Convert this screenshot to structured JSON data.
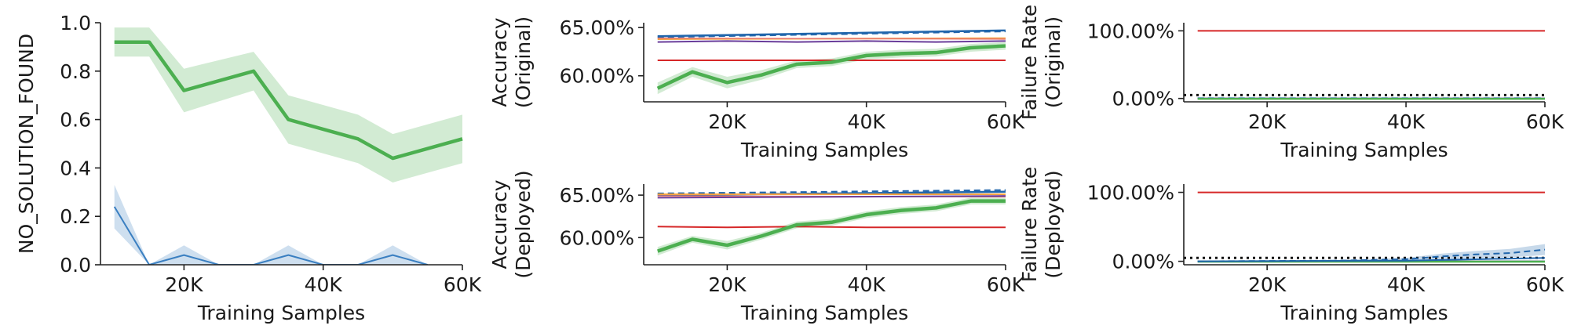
{
  "chart_data": [
    {
      "id": "nsf",
      "type": "line",
      "title": "",
      "xlabel": "Training Samples",
      "ylabel": "NO_SOLUTION_FOUND",
      "xlim": [
        8000,
        60000
      ],
      "ylim": [
        0,
        1.0
      ],
      "xticks": [
        20000,
        40000,
        60000
      ],
      "xtick_labels": [
        "20K",
        "40K",
        "60K"
      ],
      "yticks": [
        0,
        0.2,
        0.4,
        0.6,
        0.8,
        1.0
      ],
      "ytick_labels": [
        "0.0",
        "0.2",
        "0.4",
        "0.6",
        "0.8",
        "1.0"
      ],
      "grid": false,
      "series": [
        {
          "color": "#4caf50",
          "width": 4.5,
          "x": [
            10000,
            15000,
            20000,
            30000,
            35000,
            45000,
            50000,
            60000
          ],
          "y": [
            0.92,
            0.92,
            0.72,
            0.8,
            0.6,
            0.52,
            0.44,
            0.52
          ],
          "lower": [
            0.86,
            0.86,
            0.63,
            0.72,
            0.5,
            0.42,
            0.34,
            0.42
          ],
          "upper": [
            0.98,
            0.98,
            0.81,
            0.88,
            0.7,
            0.62,
            0.54,
            0.62
          ]
        },
        {
          "color": "#3a7fc1",
          "width": 2,
          "x": [
            10000,
            15000,
            20000,
            25000,
            30000,
            35000,
            40000,
            45000,
            50000,
            55000
          ],
          "y": [
            0.24,
            0,
            0.04,
            0,
            0,
            0.04,
            0,
            0,
            0.04,
            0
          ],
          "lower": [
            0.15,
            0,
            0,
            0,
            0,
            0,
            0,
            0,
            0,
            0
          ],
          "upper": [
            0.33,
            0,
            0.08,
            0,
            0,
            0.08,
            0,
            0,
            0.08,
            0
          ]
        }
      ]
    },
    {
      "id": "acc_orig",
      "type": "line",
      "title": "",
      "xlabel": "Training Samples",
      "ylabel": [
        "Accuracy",
        "(Original)"
      ],
      "xlim": [
        8000,
        60000
      ],
      "ylim": [
        57.3,
        65.5
      ],
      "xticks": [
        20000,
        40000,
        60000
      ],
      "xtick_labels": [
        "20K",
        "40K",
        "60K"
      ],
      "yticks": [
        60,
        65
      ],
      "ytick_labels": [
        "60.00%",
        "65.00%"
      ],
      "grid": false,
      "series": [
        {
          "color": "#2166ac",
          "width": 2.5,
          "x": [
            10000,
            60000
          ],
          "y": [
            64.1,
            64.7
          ]
        },
        {
          "color": "#2166ac",
          "width": 2,
          "dash": "8,5",
          "x": [
            10000,
            60000
          ],
          "y": [
            64.0,
            64.6
          ]
        },
        {
          "color": "#f5a442",
          "width": 2,
          "x": [
            10000,
            60000
          ],
          "y": [
            63.8,
            63.9
          ]
        },
        {
          "color": "#e8776f",
          "width": 1.5,
          "x": [
            10000,
            60000
          ],
          "y": [
            63.9,
            63.8
          ]
        },
        {
          "color": "#6a3d9a",
          "width": 2,
          "x": [
            10000,
            20000,
            30000,
            40000,
            50000,
            60000
          ],
          "y": [
            63.5,
            63.6,
            63.5,
            63.6,
            63.5,
            63.6
          ]
        },
        {
          "color": "#d62728",
          "width": 2,
          "x": [
            10000,
            60000
          ],
          "y": [
            61.6,
            61.6
          ]
        },
        {
          "color": "#4caf50",
          "width": 4.5,
          "x": [
            10000,
            15000,
            20000,
            25000,
            30000,
            35000,
            40000,
            45000,
            50000,
            55000,
            60000
          ],
          "y": [
            58.7,
            60.4,
            59.3,
            60.1,
            61.2,
            61.4,
            62.1,
            62.3,
            62.4,
            62.9,
            63.1
          ],
          "lower": [
            58.1,
            59.9,
            58.7,
            59.6,
            60.8,
            61.0,
            61.7,
            61.9,
            62.0,
            62.5,
            62.7
          ],
          "upper": [
            59.3,
            60.9,
            59.9,
            60.6,
            61.6,
            61.8,
            62.5,
            62.7,
            62.8,
            63.3,
            63.5
          ]
        }
      ]
    },
    {
      "id": "fail_orig",
      "type": "line",
      "title": "",
      "xlabel": "Training Samples",
      "ylabel": [
        "Failure Rate",
        "(Original)"
      ],
      "xlim": [
        8000,
        60000
      ],
      "ylim": [
        -5,
        112
      ],
      "xticks": [
        20000,
        40000,
        60000
      ],
      "xtick_labels": [
        "20K",
        "40K",
        "60K"
      ],
      "yticks": [
        0,
        100
      ],
      "ytick_labels": [
        "0.00%",
        "100.00%"
      ],
      "grid": false,
      "series": [
        {
          "color": "#d62728",
          "width": 2,
          "x": [
            10000,
            60000
          ],
          "y": [
            100,
            100
          ]
        },
        {
          "color": "#111111",
          "width": 3,
          "dash": "3,5",
          "x": [
            8000,
            60000
          ],
          "y": [
            5,
            5
          ]
        },
        {
          "color": "#6a3d9a",
          "width": 2,
          "x": [
            10000,
            60000
          ],
          "y": [
            0,
            0
          ]
        },
        {
          "color": "#2166ac",
          "width": 2,
          "dash": "8,5",
          "x": [
            10000,
            60000
          ],
          "y": [
            0.4,
            0.4
          ]
        },
        {
          "color": "#4caf50",
          "width": 2.5,
          "x": [
            10000,
            60000
          ],
          "y": [
            -0.5,
            -0.5
          ]
        }
      ]
    },
    {
      "id": "acc_dep",
      "type": "line",
      "title": "",
      "xlabel": "Training Samples",
      "ylabel": [
        "Accuracy",
        "(Deployed)"
      ],
      "xlim": [
        8000,
        60000
      ],
      "ylim": [
        56.8,
        66.3
      ],
      "xticks": [
        20000,
        40000,
        60000
      ],
      "xtick_labels": [
        "20K",
        "40K",
        "60K"
      ],
      "yticks": [
        60,
        65
      ],
      "ytick_labels": [
        "60.00%",
        "65.00%"
      ],
      "grid": false,
      "series": [
        {
          "color": "#2166ac",
          "width": 2,
          "dash": "8,5",
          "x": [
            10000,
            60000
          ],
          "y": [
            65.2,
            65.6
          ]
        },
        {
          "color": "#2166ac",
          "width": 2.5,
          "x": [
            10000,
            60000
          ],
          "y": [
            65.0,
            65.4
          ]
        },
        {
          "color": "#f5a442",
          "width": 2,
          "x": [
            10000,
            60000
          ],
          "y": [
            65.1,
            65.1
          ]
        },
        {
          "color": "#e8776f",
          "width": 1.5,
          "x": [
            10000,
            60000
          ],
          "y": [
            64.9,
            64.8
          ]
        },
        {
          "color": "#6a3d9a",
          "width": 2,
          "x": [
            10000,
            60000
          ],
          "y": [
            64.7,
            64.9
          ]
        },
        {
          "color": "#d62728",
          "width": 2,
          "x": [
            10000,
            20000,
            30000,
            40000,
            50000,
            60000
          ],
          "y": [
            61.3,
            61.2,
            61.3,
            61.2,
            61.2,
            61.2
          ]
        },
        {
          "color": "#4caf50",
          "width": 4.5,
          "x": [
            10000,
            15000,
            20000,
            25000,
            30000,
            35000,
            40000,
            45000,
            50000,
            55000,
            60000
          ],
          "y": [
            58.4,
            59.8,
            59.1,
            60.2,
            61.5,
            61.8,
            62.7,
            63.2,
            63.5,
            64.3,
            64.3
          ],
          "lower": [
            57.9,
            59.4,
            58.6,
            59.8,
            61.1,
            61.4,
            62.3,
            62.8,
            63.1,
            63.9,
            63.9
          ],
          "upper": [
            58.9,
            60.2,
            59.6,
            60.6,
            61.9,
            62.2,
            63.1,
            63.6,
            63.9,
            64.7,
            64.7
          ]
        }
      ]
    },
    {
      "id": "fail_dep",
      "type": "line",
      "title": "",
      "xlabel": "Training Samples",
      "ylabel": [
        "Failure Rate",
        "(Deployed)"
      ],
      "xlim": [
        8000,
        60000
      ],
      "ylim": [
        -5,
        112
      ],
      "xticks": [
        20000,
        40000,
        60000
      ],
      "xtick_labels": [
        "20K",
        "40K",
        "60K"
      ],
      "yticks": [
        0,
        100
      ],
      "ytick_labels": [
        "0.00%",
        "100.00%"
      ],
      "grid": false,
      "series": [
        {
          "color": "#d62728",
          "width": 2,
          "x": [
            10000,
            60000
          ],
          "y": [
            100,
            100
          ]
        },
        {
          "color": "#111111",
          "width": 3,
          "dash": "3,5",
          "x": [
            8000,
            60000
          ],
          "y": [
            5,
            5
          ]
        },
        {
          "color": "#6a3d9a",
          "width": 2,
          "x": [
            10000,
            60000
          ],
          "y": [
            0,
            0
          ]
        },
        {
          "color": "#4caf50",
          "width": 2.5,
          "x": [
            10000,
            60000
          ],
          "y": [
            -0.5,
            -0.5
          ]
        },
        {
          "color": "#2166ac",
          "width": 2,
          "dash": "8,5",
          "x": [
            10000,
            20000,
            30000,
            40000,
            45000,
            50000,
            55000,
            60000
          ],
          "y": [
            0,
            0.5,
            1,
            3,
            7,
            10,
            12,
            17
          ],
          "lower": [
            0,
            0,
            0,
            1,
            3,
            5,
            6,
            9
          ],
          "upper": [
            0,
            1,
            2,
            5,
            11,
            15,
            18,
            25
          ]
        },
        {
          "color": "#2166ac",
          "width": 2,
          "x": [
            10000,
            40000,
            50000,
            60000
          ],
          "y": [
            0,
            1,
            3,
            5
          ]
        }
      ]
    }
  ]
}
